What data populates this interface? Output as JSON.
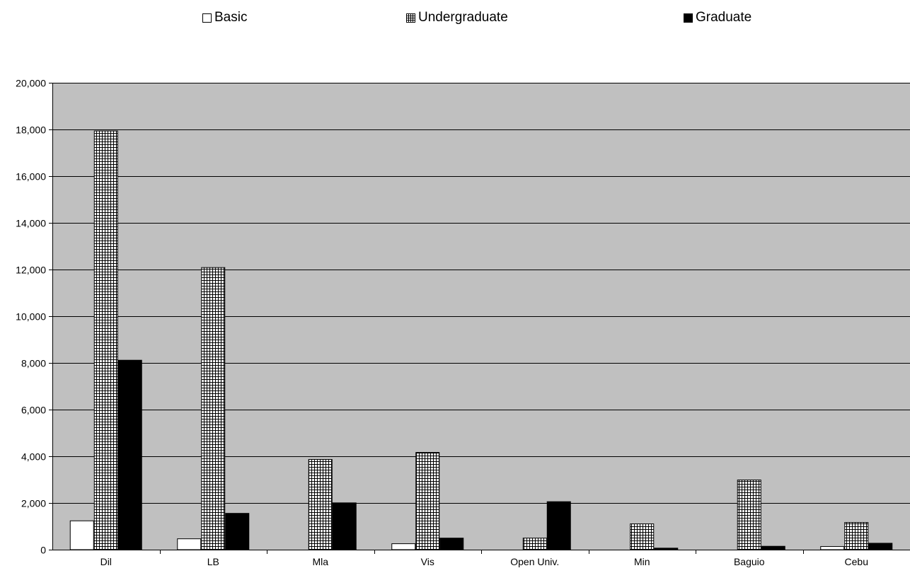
{
  "chart_data": {
    "type": "bar",
    "categories": [
      "Dil",
      "LB",
      "Mla",
      "Vis",
      "Open Univ.",
      "Min",
      "Baguio",
      "Cebu"
    ],
    "series": [
      {
        "name": "Basic",
        "values": [
          1250,
          480,
          0,
          270,
          0,
          0,
          0,
          150
        ],
        "fill": "white"
      },
      {
        "name": "Undergraduate",
        "values": [
          17950,
          12100,
          3880,
          4180,
          510,
          1120,
          3000,
          1180
        ],
        "fill": "grid"
      },
      {
        "name": "Graduate",
        "values": [
          8130,
          1570,
          2020,
          510,
          2070,
          80,
          160,
          290
        ],
        "fill": "black"
      }
    ],
    "ylim": [
      0,
      20000
    ],
    "yticks": [
      0,
      2000,
      4000,
      6000,
      8000,
      10000,
      12000,
      14000,
      16000,
      18000,
      20000
    ],
    "ytick_labels": [
      "0",
      "2,000",
      "4,000",
      "6,000",
      "8,000",
      "10,000",
      "12,000",
      "14,000",
      "16,000",
      "18,000",
      "20,000"
    ],
    "grid": true,
    "legend_position": "top",
    "colors": {
      "plot_background": "#c0c0c0",
      "gridline": "#000000",
      "bar_outline": "#000000"
    }
  }
}
